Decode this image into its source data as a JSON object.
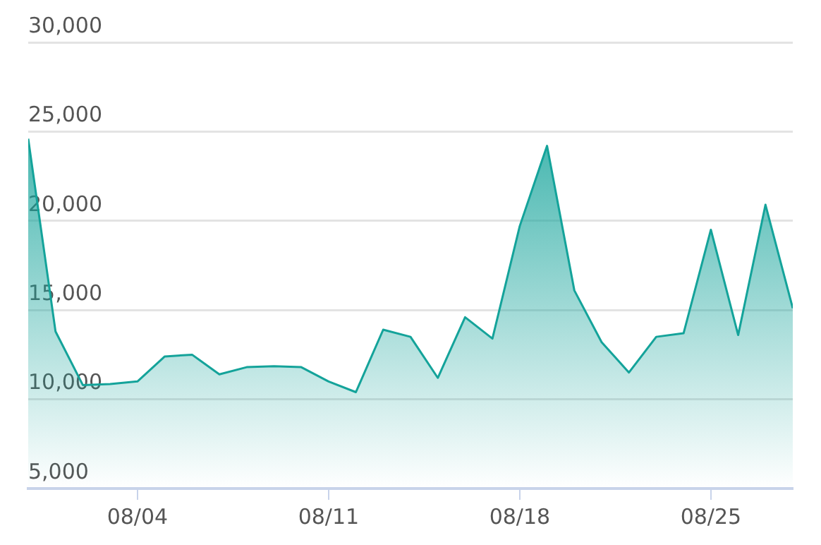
{
  "chart_data": {
    "type": "area",
    "x": [
      "--07-31",
      "--08-01",
      "--08-02",
      "--08-03",
      "--08-04",
      "--08-05",
      "--08-06",
      "--08-07",
      "--08-08",
      "--08-09",
      "--08-10",
      "--08-11",
      "--08-12",
      "--08-13",
      "--08-14",
      "--08-15",
      "--08-16",
      "--08-17",
      "--08-18",
      "--08-19",
      "--08-20",
      "--08-21",
      "--08-22",
      "--08-23",
      "--08-24",
      "--08-25",
      "--08-26",
      "--08-27",
      "--08-28"
    ],
    "series": [
      {
        "color": "#14a39a",
        "values": [
          24600,
          13800,
          10800,
          10850,
          11000,
          12400,
          12500,
          11400,
          11800,
          11850,
          11800,
          11000,
          10400,
          13900,
          13500,
          11200,
          14600,
          13400,
          19700,
          24200,
          16100,
          13200,
          11500,
          13500,
          13700,
          19500,
          13600,
          20900,
          15100
        ]
      }
    ],
    "xlim": [
      "--07-31",
      "--08-28"
    ],
    "xticks": [
      {
        "value": "--08-04",
        "label": "08/04"
      },
      {
        "value": "--08-11",
        "label": "08/11"
      },
      {
        "value": "--08-18",
        "label": "08/18"
      },
      {
        "value": "--08-25",
        "label": "08/25"
      }
    ],
    "ylim": [
      5000,
      30000
    ],
    "yticks": [
      {
        "value": 5000,
        "label": "5,000"
      },
      {
        "value": 10000,
        "label": "10,000"
      },
      {
        "value": 15000,
        "label": "15,000"
      },
      {
        "value": 20000,
        "label": "20,000"
      },
      {
        "value": 25000,
        "label": "25,000"
      },
      {
        "value": 30000,
        "label": "30,000"
      }
    ],
    "grid": "y",
    "legend": false,
    "marker": "none",
    "line_style": "solid"
  }
}
